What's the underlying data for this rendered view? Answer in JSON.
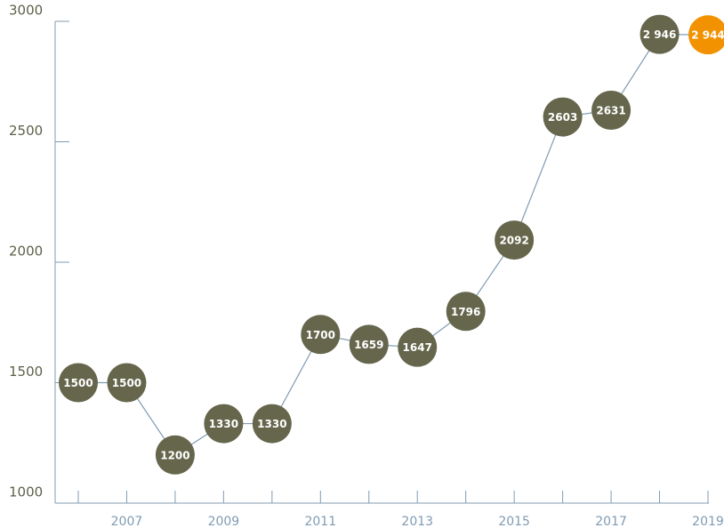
{
  "chart_data": {
    "type": "line",
    "categories": [
      null,
      "2007",
      null,
      "2009",
      null,
      "2011",
      null,
      "2013",
      null,
      "2015",
      null,
      "2017",
      null,
      "2019"
    ],
    "series": [
      {
        "color": "#7f9bb3",
        "values": [
          1500,
          1500,
          1200,
          1330,
          1330,
          1700,
          1659,
          1647,
          1796,
          2092,
          2603,
          2631,
          2946,
          2944
        ],
        "value_labels": [
          "1500",
          "1500",
          "1200",
          "1330",
          "1330",
          "1700",
          "1659",
          "1647",
          "1796",
          "2092",
          "2603",
          "2631",
          "2 946",
          "2 944"
        ],
        "point_colors": [
          "#65664c",
          "#65664c",
          "#65664c",
          "#65664c",
          "#65664c",
          "#65664c",
          "#65664c",
          "#65664c",
          "#65664c",
          "#65664c",
          "#65664c",
          "#65664c",
          "#65664c",
          "#f39200"
        ]
      }
    ],
    "ylim": [
      1000,
      3000
    ],
    "yticks": [
      1000,
      1500,
      2000,
      2500,
      3000
    ]
  }
}
